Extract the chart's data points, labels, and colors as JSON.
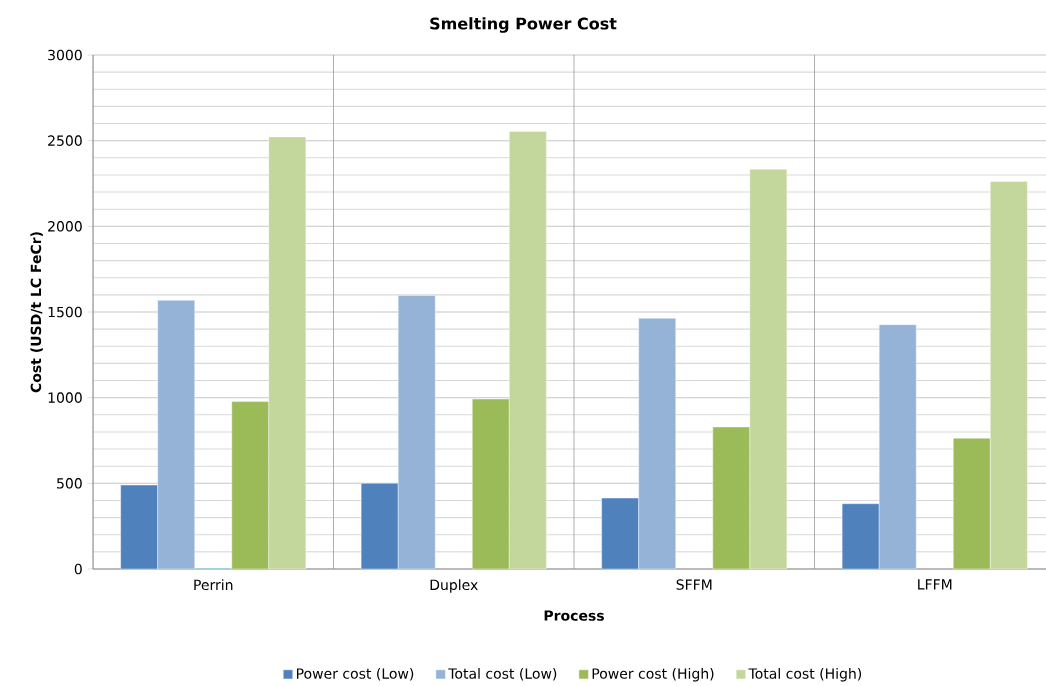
{
  "chart_data": {
    "type": "bar",
    "title": "Smelting Power Cost",
    "xlabel": "Process",
    "ylabel": "Cost (USD/t LC FeCr)",
    "categories": [
      "Perrin",
      "Duplex",
      "SFFM",
      "LFFM"
    ],
    "series": [
      {
        "name": "Power cost (Low)",
        "color": "#4f81bd",
        "values": [
          490,
          500,
          414,
          381
        ]
      },
      {
        "name": "Total cost (Low)",
        "color": "#95b3d7",
        "values": [
          1568,
          1596,
          1463,
          1426
        ]
      },
      {
        "color": "#4bacc6",
        "values": [
          5,
          null,
          null,
          null
        ]
      },
      {
        "name": "Power cost (High)",
        "color": "#9bbb59",
        "values": [
          977,
          992,
          829,
          763
        ]
      },
      {
        "name": "Total cost (High)",
        "color": "#c3d69b",
        "values": [
          2522,
          2553,
          2333,
          2261
        ]
      }
    ],
    "ylim": [
      0,
      3000
    ],
    "yticks": [
      0,
      500,
      1000,
      1500,
      2000,
      2500,
      3000
    ],
    "grid": "y",
    "legend": "bottom"
  }
}
